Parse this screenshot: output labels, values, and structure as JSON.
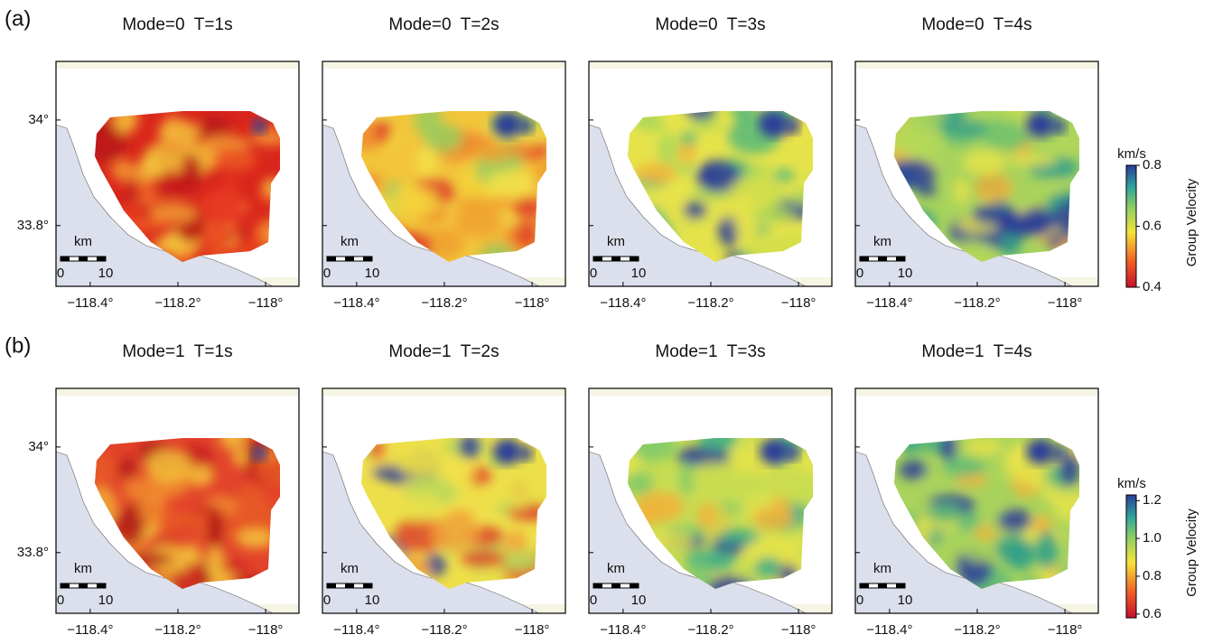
{
  "rows": [
    {
      "label": "(a)",
      "titles": [
        "Mode=0  T=1s",
        "Mode=0  T=2s",
        "Mode=0  T=3s",
        "Mode=0  T=4s"
      ],
      "colorbar": {
        "unit": "km/s",
        "title": "Group Velocity",
        "lim": [
          0.4,
          0.8
        ],
        "ticks": [
          0.4,
          0.6,
          0.8
        ]
      }
    },
    {
      "label": "(b)",
      "titles": [
        "Mode=1  T=1s",
        "Mode=1  T=2s",
        "Mode=1  T=3s",
        "Mode=1  T=4s"
      ],
      "colorbar": {
        "unit": "km/s",
        "title": "Group Velocity",
        "lim": [
          0.58,
          1.23
        ],
        "ticks": [
          0.6,
          0.8,
          {
            "value": 1,
            "label": "1.0"
          },
          1.2
        ]
      }
    }
  ],
  "map": {
    "xlim": [
      -118.478,
      -117.924
    ],
    "ylim": [
      33.685,
      34.111
    ],
    "xticks": [
      {
        "value": -118.4,
        "label": "−118.4°"
      },
      {
        "value": -118.2,
        "label": "−118.2°"
      },
      {
        "value": -118,
        "label": "−118°"
      }
    ],
    "yticks": [
      {
        "value": 34,
        "label": "34°"
      },
      {
        "value": 33.8,
        "label": "33.8°"
      }
    ],
    "scale_bar": {
      "unit": "km",
      "ticks": [
        0,
        10
      ]
    }
  }
}
